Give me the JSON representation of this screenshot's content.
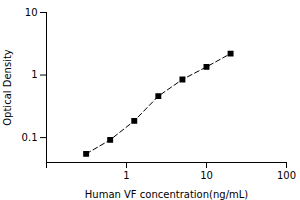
{
  "chart_data": {
    "type": "line",
    "xlabel": "Human VF concentration(ng/mL)",
    "ylabel": "Optical Density",
    "x": [
      0.313,
      0.625,
      1.25,
      2.5,
      5.0,
      10.0,
      20.0
    ],
    "values": [
      0.055,
      0.092,
      0.185,
      0.46,
      0.85,
      1.35,
      2.2
    ],
    "xlim": [
      0.1,
      100
    ],
    "ylim": [
      0.04,
      10
    ],
    "xticks": [
      {
        "value": 0.1,
        "label": ""
      },
      1,
      10,
      100
    ],
    "yticks": [
      0.1,
      1,
      10
    ],
    "log": true,
    "grid": false,
    "color": "black",
    "marker": "square",
    "line_style": "dashed"
  }
}
